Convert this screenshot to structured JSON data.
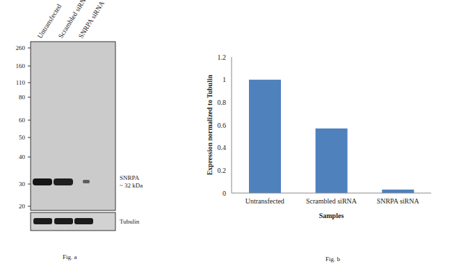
{
  "chart_data": {
    "type": "bar",
    "caption": "Fig. b",
    "categories": [
      "Untransfected",
      "Scrambled siRNA",
      "SNRPA siRNA"
    ],
    "values": [
      1,
      0.57,
      0.03
    ],
    "color": "#4f81bd",
    "ylim": [
      0,
      1.2
    ],
    "yticks": [
      0,
      0.2,
      0.4,
      0.6,
      0.8,
      1,
      1.2
    ],
    "x_label": "Samples",
    "y_label": "Expression normalized to Tubulin",
    "grid": false
  },
  "blot": {
    "caption": "Fig. a",
    "lanes": [
      "Untransfected",
      "Scrambled siRNA",
      "SNRPA siRNA"
    ],
    "markers": [
      260,
      160,
      110,
      80,
      60,
      50,
      40,
      30,
      20
    ],
    "bands": [
      {
        "label": "SNRPA",
        "size": "~ 32 kDa"
      },
      {
        "label": "Tubulin"
      }
    ]
  }
}
